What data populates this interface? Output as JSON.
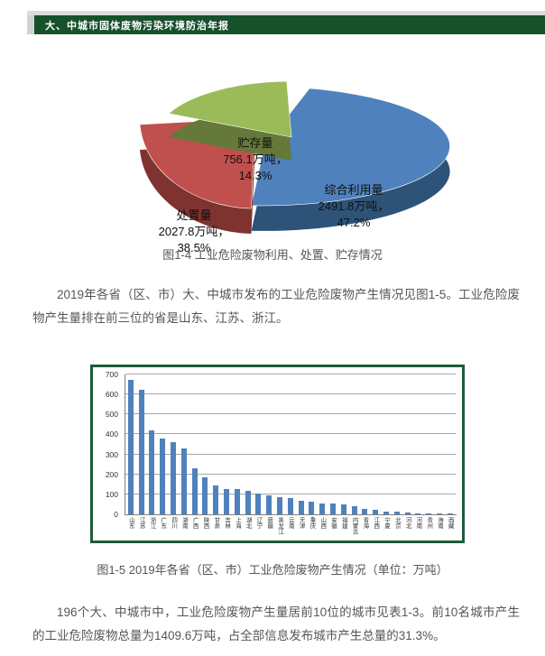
{
  "header": {
    "title": "大、中城市固体废物污染环境防治年报"
  },
  "colors": {
    "header_green": "#17512c",
    "top_strip": "#d9dcd9",
    "header_tab": "#cfd4cf",
    "body_text": "#555555",
    "chart_border": "#1e5c3a",
    "bar_fill": "#4f81bd",
    "grid_line": "#a6a6a6"
  },
  "pie_figure": {
    "caption": "图1-4  工业危险废物利用、处置、贮存情况",
    "labels": [
      {
        "name": "综合利用量",
        "qty": "2491.8万吨，",
        "pct": "47.2%"
      },
      {
        "name": "处置量",
        "qty": "2027.8万吨，",
        "pct": "38.5%"
      },
      {
        "name": "贮存量",
        "qty": "756.1万吨，",
        "pct": "14.3%"
      }
    ]
  },
  "paragraph1": "2019年各省（区、市）大、中城市发布的工业危险废物产生情况见图1-5。工业危险废物产生量排在前三位的省是山东、江苏、浙江。",
  "bar_figure": {
    "caption": "图1-5 2019年各省（区、市）工业危险废物产生情况（单位：万吨）"
  },
  "paragraph2": "196个大、中城市中，工业危险废物产生量居前10位的城市见表1-3。前10名城市产生的工业危险废物总量为1409.6万吨，占全部信息发布城市产生总量的31.3%。",
  "chart_data": [
    {
      "type": "pie",
      "title": "图1-4 工业危险废物利用、处置、贮存情况",
      "unit": "万吨",
      "labels": [
        "综合利用量",
        "处置量",
        "贮存量"
      ],
      "values": [
        2491.8,
        2027.8,
        756.1
      ],
      "percents": [
        47.2,
        38.5,
        14.3
      ],
      "colors": [
        "#4f81bd",
        "#c0504d",
        "#9bbb59"
      ],
      "side_colors": [
        "#2e5379",
        "#7e3331",
        "#64793a"
      ],
      "legend": "none",
      "style": "3d-exploded"
    },
    {
      "type": "bar",
      "title": "图1-5 2019年各省（区、市）工业危险废物产生情况（单位：万吨）",
      "unit": "万吨",
      "ylim": [
        0,
        700
      ],
      "ytick_step": 100,
      "grid": true,
      "legend": "none",
      "categories": [
        "山东",
        "江苏",
        "浙江",
        "广东",
        "四川",
        "湖南",
        "广西",
        "陕西",
        "甘肃",
        "吉林",
        "上海",
        "湖北",
        "辽宁",
        "新疆",
        "黑龙江",
        "云南",
        "天津",
        "重庆",
        "山西",
        "安徽",
        "福建",
        "内蒙古",
        "青海",
        "江西",
        "宁夏",
        "北京",
        "河北",
        "河南",
        "贵州",
        "海南",
        "西藏"
      ],
      "values": [
        675,
        622,
        420,
        379,
        362,
        330,
        232,
        185,
        143,
        126,
        125,
        117,
        106,
        93,
        88,
        80,
        68,
        64,
        56,
        53,
        51,
        41,
        26,
        22,
        15,
        13,
        8,
        6,
        4,
        2,
        1
      ]
    }
  ]
}
